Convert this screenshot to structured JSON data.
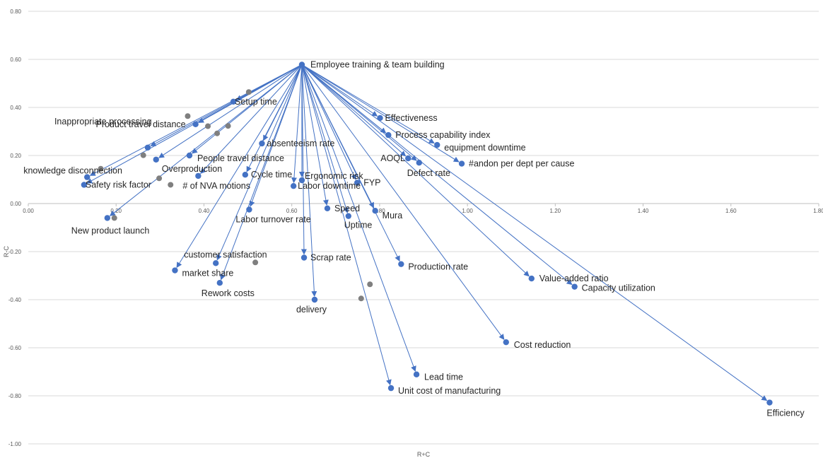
{
  "chart_data": {
    "type": "scatter",
    "title": "",
    "xlabel": "R+C",
    "ylabel": "R-C",
    "xlim": [
      0,
      1.8
    ],
    "ylim": [
      -1.0,
      0.8
    ],
    "xticks": [
      "0.00",
      "0.20",
      "0.40",
      "0.60",
      "0.80",
      "1.00",
      "1.20",
      "1.40",
      "1.60",
      "1.80"
    ],
    "yticks": [
      "0.80",
      "0.60",
      "0.40",
      "0.20",
      "0.00",
      "-0.20",
      "-0.40",
      "-0.60",
      "-0.80",
      "-1.00"
    ],
    "grid": "horizontal",
    "legend": "none",
    "colors": {
      "series": "#4472c4",
      "secondary": "#7f7f7f",
      "grid": "#d9d9d9",
      "axis": "#bfbfbf"
    },
    "arrow_source": "Employee training & team building",
    "points": [
      {
        "name": "Employee training & team building",
        "x": 0.623,
        "y": 0.578
      },
      {
        "name": "Setup time",
        "x": 0.467,
        "y": 0.424
      },
      {
        "name": "Product travel distance",
        "x": 0.381,
        "y": 0.33
      },
      {
        "name": "Inappropriate processing",
        "x": 0.272,
        "y": 0.233
      },
      {
        "name": "People travel distance",
        "x": 0.367,
        "y": 0.2
      },
      {
        "name": "Overproduction",
        "x": 0.291,
        "y": 0.183
      },
      {
        "name": "knowledge disconnection",
        "x": 0.134,
        "y": 0.11
      },
      {
        "name": "Safety risk factor",
        "x": 0.127,
        "y": 0.078
      },
      {
        "name": "# of NVA motions",
        "x": 0.387,
        "y": 0.115
      },
      {
        "name": "absenteeism rate",
        "x": 0.532,
        "y": 0.25
      },
      {
        "name": "Cycle time",
        "x": 0.494,
        "y": 0.12
      },
      {
        "name": "Ergonomic risk",
        "x": 0.623,
        "y": 0.097
      },
      {
        "name": "Labor downtime",
        "x": 0.604,
        "y": 0.073
      },
      {
        "name": "FYP",
        "x": 0.749,
        "y": 0.087
      },
      {
        "name": "New product launch",
        "x": 0.18,
        "y": -0.06
      },
      {
        "name": "Labor turnover rate",
        "x": 0.503,
        "y": -0.025
      },
      {
        "name": "Speed",
        "x": 0.681,
        "y": -0.02
      },
      {
        "name": "Uptime",
        "x": 0.729,
        "y": -0.052
      },
      {
        "name": "Mura",
        "x": 0.79,
        "y": -0.03
      },
      {
        "name": "Effectiveness",
        "x": 0.801,
        "y": 0.356
      },
      {
        "name": "Process capability index",
        "x": 0.82,
        "y": 0.285
      },
      {
        "name": "equipment downtime",
        "x": 0.931,
        "y": 0.244
      },
      {
        "name": "AOQL",
        "x": 0.865,
        "y": 0.188
      },
      {
        "name": "Defect rate",
        "x": 0.89,
        "y": 0.17
      },
      {
        "name": "#andon per dept per cause",
        "x": 0.987,
        "y": 0.166
      },
      {
        "name": "customer satisfaction",
        "x": 0.427,
        "y": -0.248
      },
      {
        "name": "market share",
        "x": 0.334,
        "y": -0.278
      },
      {
        "name": "Rework costs",
        "x": 0.436,
        "y": -0.33
      },
      {
        "name": "Scrap rate",
        "x": 0.628,
        "y": -0.225
      },
      {
        "name": "delivery",
        "x": 0.652,
        "y": -0.4
      },
      {
        "name": "Production rate",
        "x": 0.849,
        "y": -0.252
      },
      {
        "name": "Value-added ratio",
        "x": 1.146,
        "y": -0.312
      },
      {
        "name": "Capacity utilization",
        "x": 1.244,
        "y": -0.346
      },
      {
        "name": "Cost reduction",
        "x": 1.088,
        "y": -0.577
      },
      {
        "name": "Lead time",
        "x": 0.884,
        "y": -0.711
      },
      {
        "name": "Unit cost of manufacturing",
        "x": 0.826,
        "y": -0.768
      },
      {
        "name": "Efficiency",
        "x": 1.688,
        "y": -0.828
      }
    ],
    "secondary_points": [
      {
        "x": 0.502,
        "y": 0.464
      },
      {
        "x": 0.363,
        "y": 0.364
      },
      {
        "x": 0.409,
        "y": 0.322
      },
      {
        "x": 0.455,
        "y": 0.323
      },
      {
        "x": 0.43,
        "y": 0.292
      },
      {
        "x": 0.262,
        "y": 0.201
      },
      {
        "x": 0.165,
        "y": 0.145
      },
      {
        "x": 0.298,
        "y": 0.105
      },
      {
        "x": 0.324,
        "y": 0.078
      },
      {
        "x": 0.196,
        "y": -0.06
      },
      {
        "x": 0.517,
        "y": -0.245
      },
      {
        "x": 0.778,
        "y": -0.336
      },
      {
        "x": 0.758,
        "y": -0.395
      }
    ]
  }
}
